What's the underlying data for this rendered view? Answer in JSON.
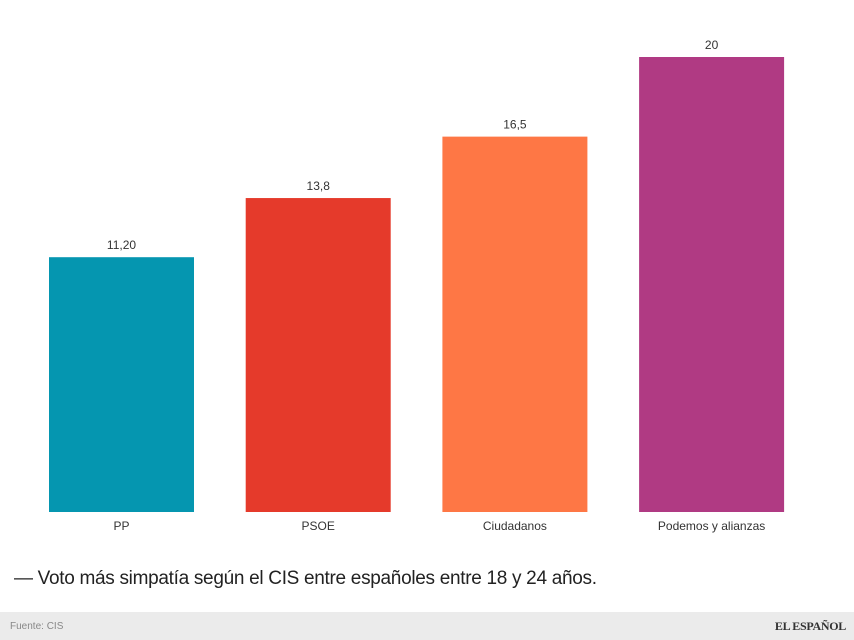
{
  "chart_data": {
    "type": "bar",
    "categories": [
      "PP",
      "PSOE",
      "Ciudadanos",
      "Podemos y alianzas"
    ],
    "values": [
      11.2,
      13.8,
      16.5,
      20
    ],
    "value_labels": [
      "11,20",
      "13,8",
      "16,5",
      "20"
    ],
    "colors": [
      "#0596b0",
      "#e53a2b",
      "#fe7745",
      "#b03a83"
    ],
    "title": "",
    "xlabel": "",
    "ylabel": "",
    "ylim": [
      0,
      20
    ],
    "grid": false,
    "legend": "none"
  },
  "caption": "— Voto más simpatía según el CIS entre españoles entre 18 y 24 años.",
  "footer": {
    "source": "Fuente: CIS",
    "logo": "EL ESPAÑOL"
  }
}
